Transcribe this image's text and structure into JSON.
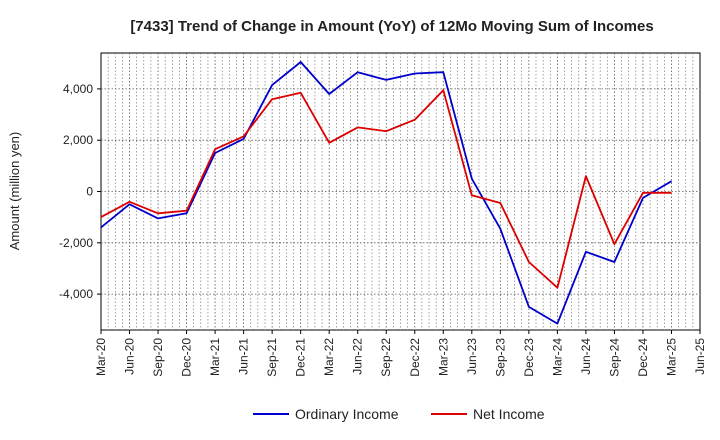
{
  "chart_data": {
    "type": "line",
    "title": "[7433]  Trend of Change in Amount (YoY) of 12Mo Moving Sum of Incomes",
    "xlabel": "",
    "ylabel": "Amount (million yen)",
    "categories": [
      "Mar-20",
      "Jun-20",
      "Sep-20",
      "Dec-20",
      "Mar-21",
      "Jun-21",
      "Sep-21",
      "Dec-21",
      "Mar-22",
      "Jun-22",
      "Sep-22",
      "Dec-22",
      "Mar-23",
      "Jun-23",
      "Sep-23",
      "Dec-23",
      "Mar-24",
      "Jun-24",
      "Sep-24",
      "Dec-24",
      "Mar-25",
      "Jun-25"
    ],
    "ylim": [
      -5400,
      5400
    ],
    "yticks": [
      -4000,
      -2000,
      0,
      2000,
      4000
    ],
    "ytick_labels": [
      "-4,000",
      "-2,000",
      "0",
      "2,000",
      "4,000"
    ],
    "grid": true,
    "legend_position": "bottom-center",
    "series": [
      {
        "name": "Ordinary Income",
        "color": "#0000cc",
        "values": [
          -1400,
          -500,
          -1050,
          -850,
          1500,
          2050,
          4150,
          5050,
          3800,
          4650,
          4350,
          4600,
          4650,
          500,
          -1450,
          -4500,
          -5150,
          -2350,
          -2750,
          -250,
          400,
          null
        ]
      },
      {
        "name": "Net Income",
        "color": "#dd0000",
        "values": [
          -1000,
          -400,
          -850,
          -750,
          1650,
          2150,
          3600,
          3850,
          1900,
          2500,
          2350,
          2800,
          3950,
          -150,
          -450,
          -2750,
          -3750,
          600,
          -2050,
          -50,
          -50,
          null
        ]
      }
    ]
  }
}
